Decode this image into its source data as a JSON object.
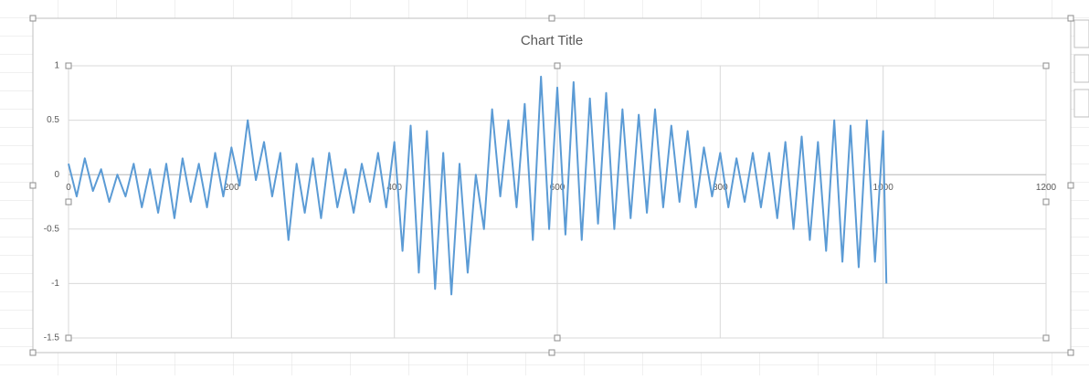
{
  "chart_data": {
    "type": "line",
    "title": "Chart Title",
    "x": [
      0,
      10,
      20,
      30,
      40,
      50,
      60,
      70,
      80,
      90,
      100,
      110,
      120,
      130,
      140,
      150,
      160,
      170,
      180,
      190,
      200,
      210,
      220,
      230,
      240,
      250,
      260,
      270,
      280,
      290,
      300,
      310,
      320,
      330,
      340,
      350,
      360,
      370,
      380,
      390,
      400,
      410,
      420,
      430,
      440,
      450,
      460,
      470,
      480,
      490,
      500,
      510,
      520,
      530,
      540,
      550,
      560,
      570,
      580,
      590,
      600,
      610,
      620,
      630,
      640,
      650,
      660,
      670,
      680,
      690,
      700,
      710,
      720,
      730,
      740,
      750,
      760,
      770,
      780,
      790,
      800,
      810,
      820,
      830,
      840,
      850,
      860,
      870,
      880,
      890,
      900,
      910,
      920,
      930,
      940,
      950,
      960,
      970,
      980,
      990,
      1000,
      1004
    ],
    "series": [
      {
        "color": "#5b9bd5",
        "values": [
          0.1,
          -0.2,
          0.15,
          -0.15,
          0.05,
          -0.25,
          0.0,
          -0.2,
          0.1,
          -0.3,
          0.05,
          -0.35,
          0.1,
          -0.4,
          0.15,
          -0.25,
          0.1,
          -0.3,
          0.2,
          -0.2,
          0.25,
          -0.1,
          0.5,
          -0.05,
          0.3,
          -0.2,
          0.2,
          -0.6,
          0.1,
          -0.35,
          0.15,
          -0.4,
          0.2,
          -0.3,
          0.05,
          -0.35,
          0.1,
          -0.25,
          0.2,
          -0.3,
          0.3,
          -0.7,
          0.45,
          -0.9,
          0.4,
          -1.05,
          0.2,
          -1.1,
          0.1,
          -0.9,
          0.0,
          -0.5,
          0.6,
          -0.2,
          0.5,
          -0.3,
          0.65,
          -0.6,
          0.9,
          -0.5,
          0.8,
          -0.55,
          0.85,
          -0.6,
          0.7,
          -0.45,
          0.75,
          -0.5,
          0.6,
          -0.4,
          0.55,
          -0.35,
          0.6,
          -0.3,
          0.45,
          -0.25,
          0.4,
          -0.3,
          0.25,
          -0.2,
          0.2,
          -0.3,
          0.15,
          -0.25,
          0.2,
          -0.3,
          0.2,
          -0.4,
          0.3,
          -0.5,
          0.35,
          -0.6,
          0.3,
          -0.7,
          0.5,
          -0.8,
          0.45,
          -0.85,
          0.5,
          -0.8,
          0.4,
          -1.0
        ]
      }
    ],
    "xlim": [
      0,
      1200
    ],
    "xticks": [
      0,
      200,
      400,
      600,
      800,
      1000,
      1200
    ],
    "ylim": [
      -1.5,
      1
    ],
    "yticks": [
      -1.5,
      -1,
      -0.5,
      0,
      0.5,
      1
    ],
    "grid": true
  }
}
